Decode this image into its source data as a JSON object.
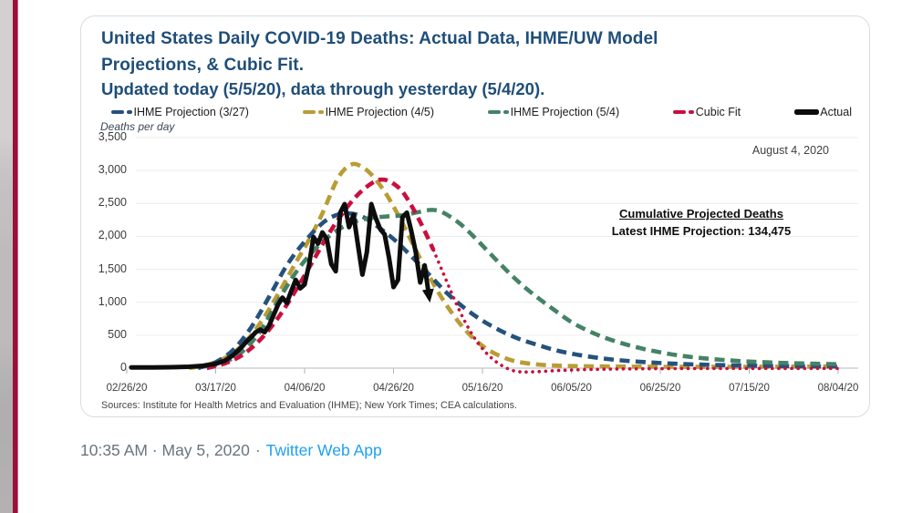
{
  "colors": {
    "title_blue": "#1F4E79",
    "left_strip_gray": "#a9a9ab",
    "accent_maroon": "#9B1038",
    "accent_pink_edge": "#C9648E",
    "timestamp_gray": "#68757f",
    "twitter_link_blue": "#1da1f2"
  },
  "tweet": {
    "meta": {
      "datetime": "10:35 AM · May 5, 2020",
      "separator": "·",
      "app": "Twitter Web App"
    }
  },
  "chart_data": {
    "type": "line",
    "title_lines": [
      "United States Daily COVID-19 Deaths: Actual Data, IHME/UW Model",
      "Projections, & Cubic Fit."
    ],
    "subtitle": "Updated today (5/5/20), data through yesterday (5/4/20).",
    "y_axis": {
      "label": "Deaths per day",
      "min": 0,
      "max": 3500,
      "tick_step": 500,
      "tick_labels": [
        "3,500",
        "3,000",
        "2,500",
        "2,000",
        "1,500",
        "1,000",
        "500",
        "0"
      ]
    },
    "x_axis": {
      "tick_labels": [
        "02/26/20",
        "03/17/20",
        "04/06/20",
        "04/26/20",
        "05/16/20",
        "06/05/20",
        "06/25/20",
        "07/15/20",
        "08/04/20"
      ],
      "start_date": "02/26/20",
      "end_date": "08/04/20",
      "tick_interval_days": 20,
      "unit": "days since 02/26/20"
    },
    "annotations": {
      "end_date": "August 4, 2020",
      "cumulative_title": "Cumulative Projected Deaths",
      "cumulative_value": "Latest IHME Projection: 134,475"
    },
    "source_note": "Sources: Institute for Health Metrics and Evaluation (IHME); New York Times; CEA calculations.",
    "grid": true,
    "legend_position": "top",
    "series": [
      {
        "name": "IHME Projection (3/27)",
        "color": "#24527C",
        "line_style": "dashed",
        "points": [
          [
            16,
            0
          ],
          [
            20,
            90
          ],
          [
            24,
            280
          ],
          [
            28,
            620
          ],
          [
            32,
            1080
          ],
          [
            36,
            1560
          ],
          [
            40,
            1920
          ],
          [
            44,
            2200
          ],
          [
            47,
            2320
          ],
          [
            50,
            2350
          ],
          [
            53,
            2300
          ],
          [
            56,
            2170
          ],
          [
            60,
            1960
          ],
          [
            64,
            1700
          ],
          [
            68,
            1420
          ],
          [
            72,
            1140
          ],
          [
            76,
            910
          ],
          [
            80,
            720
          ],
          [
            84,
            570
          ],
          [
            88,
            450
          ],
          [
            92,
            360
          ],
          [
            96,
            280
          ],
          [
            100,
            220
          ],
          [
            105,
            165
          ],
          [
            110,
            125
          ],
          [
            115,
            98
          ],
          [
            120,
            78
          ],
          [
            125,
            62
          ],
          [
            130,
            52
          ],
          [
            135,
            44
          ],
          [
            140,
            38
          ],
          [
            145,
            33
          ],
          [
            150,
            29
          ],
          [
            155,
            26
          ],
          [
            160,
            24
          ]
        ]
      },
      {
        "name": "IHME Projection (4/5)",
        "color": "#BA9C35",
        "line_style": "dashed",
        "points": [
          [
            14,
            0
          ],
          [
            18,
            50
          ],
          [
            22,
            150
          ],
          [
            26,
            350
          ],
          [
            30,
            680
          ],
          [
            34,
            1120
          ],
          [
            38,
            1600
          ],
          [
            41,
            1950
          ],
          [
            44,
            2350
          ],
          [
            47,
            2820
          ],
          [
            49,
            3020
          ],
          [
            51,
            3100
          ],
          [
            53,
            3050
          ],
          [
            55,
            2940
          ],
          [
            58,
            2680
          ],
          [
            61,
            2330
          ],
          [
            64,
            1930
          ],
          [
            67,
            1530
          ],
          [
            70,
            1160
          ],
          [
            73,
            850
          ],
          [
            76,
            590
          ],
          [
            79,
            390
          ],
          [
            82,
            250
          ],
          [
            85,
            155
          ],
          [
            88,
            95
          ],
          [
            92,
            58
          ],
          [
            96,
            40
          ],
          [
            100,
            32
          ],
          [
            110,
            24
          ],
          [
            120,
            21
          ],
          [
            130,
            20
          ],
          [
            140,
            21
          ],
          [
            150,
            23
          ],
          [
            160,
            26
          ]
        ]
      },
      {
        "name": "IHME Projection (5/4)",
        "color": "#458266",
        "line_style": "dashed",
        "points": [
          [
            18,
            20
          ],
          [
            22,
            90
          ],
          [
            26,
            250
          ],
          [
            30,
            560
          ],
          [
            34,
            1020
          ],
          [
            38,
            1450
          ],
          [
            42,
            1780
          ],
          [
            46,
            2030
          ],
          [
            50,
            2190
          ],
          [
            54,
            2270
          ],
          [
            58,
            2300
          ],
          [
            62,
            2320
          ],
          [
            65,
            2360
          ],
          [
            68,
            2400
          ],
          [
            70,
            2390
          ],
          [
            72,
            2330
          ],
          [
            75,
            2190
          ],
          [
            78,
            2000
          ],
          [
            81,
            1790
          ],
          [
            84,
            1580
          ],
          [
            87,
            1380
          ],
          [
            90,
            1200
          ],
          [
            93,
            1040
          ],
          [
            96,
            890
          ],
          [
            100,
            700
          ],
          [
            104,
            560
          ],
          [
            108,
            450
          ],
          [
            112,
            365
          ],
          [
            116,
            295
          ],
          [
            120,
            240
          ],
          [
            125,
            185
          ],
          [
            130,
            148
          ],
          [
            135,
            120
          ],
          [
            140,
            100
          ],
          [
            145,
            85
          ],
          [
            150,
            74
          ],
          [
            155,
            66
          ],
          [
            160,
            60
          ]
        ]
      },
      {
        "name": "Cubic Fit",
        "color": "#C8103E",
        "line_style": "dashed",
        "tail_style": "dotted",
        "tail_from_day": 69,
        "points": [
          [
            18,
            0
          ],
          [
            22,
            70
          ],
          [
            26,
            200
          ],
          [
            30,
            430
          ],
          [
            34,
            760
          ],
          [
            38,
            1180
          ],
          [
            42,
            1640
          ],
          [
            46,
            2100
          ],
          [
            50,
            2480
          ],
          [
            53,
            2700
          ],
          [
            56,
            2840
          ],
          [
            58,
            2860
          ],
          [
            60,
            2800
          ],
          [
            62,
            2680
          ],
          [
            64,
            2470
          ],
          [
            66,
            2220
          ],
          [
            68,
            1940
          ],
          [
            69,
            1790
          ],
          [
            71,
            1470
          ],
          [
            73,
            1150
          ],
          [
            75,
            850
          ],
          [
            77,
            590
          ],
          [
            79,
            380
          ],
          [
            81,
            220
          ],
          [
            83,
            100
          ],
          [
            85,
            15
          ],
          [
            87,
            -40
          ],
          [
            89,
            -58
          ],
          [
            92,
            -55
          ],
          [
            96,
            -40
          ],
          [
            100,
            -28
          ],
          [
            106,
            -18
          ],
          [
            112,
            -12
          ],
          [
            120,
            -8
          ],
          [
            130,
            -6
          ],
          [
            140,
            -5
          ],
          [
            150,
            -5
          ],
          [
            160,
            -5
          ]
        ]
      },
      {
        "name": "Actual",
        "color": "#0d0d0d",
        "line_style": "solid",
        "arrow_end": true,
        "points": [
          [
            1,
            10
          ],
          [
            6,
            10
          ],
          [
            10,
            14
          ],
          [
            14,
            20
          ],
          [
            17,
            35
          ],
          [
            20,
            65
          ],
          [
            22,
            110
          ],
          [
            24,
            200
          ],
          [
            26,
            330
          ],
          [
            27,
            410
          ],
          [
            28,
            470
          ],
          [
            29,
            545
          ],
          [
            30,
            585
          ],
          [
            31,
            545
          ],
          [
            32,
            645
          ],
          [
            33,
            800
          ],
          [
            34,
            960
          ],
          [
            35,
            1070
          ],
          [
            36,
            990
          ],
          [
            37,
            1170
          ],
          [
            38,
            1340
          ],
          [
            39,
            1210
          ],
          [
            40,
            1270
          ],
          [
            41,
            1570
          ],
          [
            42,
            1990
          ],
          [
            43,
            1890
          ],
          [
            44,
            2060
          ],
          [
            45,
            1960
          ],
          [
            46,
            1580
          ],
          [
            47,
            1470
          ],
          [
            48,
            2360
          ],
          [
            49,
            2490
          ],
          [
            50,
            2140
          ],
          [
            51,
            2330
          ],
          [
            52,
            1870
          ],
          [
            53,
            1420
          ],
          [
            54,
            1760
          ],
          [
            55,
            2490
          ],
          [
            56,
            2280
          ],
          [
            57,
            2110
          ],
          [
            58,
            2030
          ],
          [
            59,
            1670
          ],
          [
            60,
            1230
          ],
          [
            61,
            1340
          ],
          [
            62,
            2290
          ],
          [
            63,
            2360
          ],
          [
            64,
            2080
          ],
          [
            65,
            1760
          ],
          [
            66,
            1300
          ],
          [
            67,
            1560
          ],
          [
            68,
            1080
          ]
        ]
      }
    ]
  }
}
